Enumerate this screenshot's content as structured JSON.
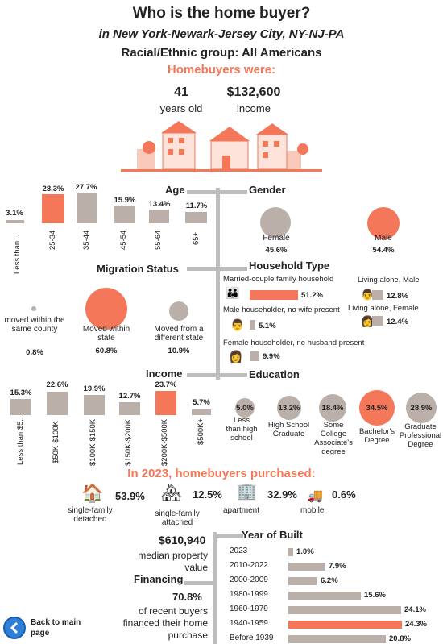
{
  "header": {
    "title": "Who is the home buyer?",
    "location": "in New York-Newark-Jersey City, NY-NJ-PA",
    "group": "Racial/Ethnic group: All Americans",
    "homebuyers_were": "Homebuyers were:"
  },
  "summary": {
    "age_value": "41",
    "age_label": "years old",
    "income_value": "$132,600",
    "income_label": "income"
  },
  "age": {
    "title": "Age",
    "categories": [
      "Less than ..",
      "25-34",
      "35-44",
      "45-54",
      "55-64",
      "65+"
    ],
    "labels": [
      "3.1%",
      "28.3%",
      "27.7%",
      "15.9%",
      "13.4%",
      "11.7%"
    ]
  },
  "gender": {
    "title": "Gender",
    "female_label": "Female",
    "female_pct": "45.6%",
    "male_label": "Male",
    "male_pct": "54.4%"
  },
  "migration": {
    "title": "Migration Status",
    "items": [
      {
        "label": "moved within the same county",
        "pct": "0.8%"
      },
      {
        "label": "Moved within state",
        "pct": "60.8%"
      },
      {
        "label": "Moved from a different state",
        "pct": "10.9%"
      }
    ]
  },
  "household": {
    "title": "Household Type",
    "married_label": "Married-couple family household",
    "married_pct": "51.2%",
    "male_no_wife_label": "Male householder, no wife present",
    "male_no_wife_pct": "5.1%",
    "female_no_husband_label": "Female householder, no husband present",
    "female_no_husband_pct": "9.9%",
    "alone_male_label": "Living alone, Male",
    "alone_male_pct": "12.8%",
    "alone_female_label": "Living alone, Female",
    "alone_female_pct": "12.4%"
  },
  "income": {
    "title": "Income",
    "categories": [
      "Less than $5..",
      "$50K-$100K",
      "$100K-$150K",
      "$150K-$200K",
      "$200K-$500K",
      "$500K+"
    ],
    "labels": [
      "15.3%",
      "22.6%",
      "19.9%",
      "12.7%",
      "23.7%",
      "5.7%"
    ]
  },
  "education": {
    "title": "Education",
    "items": [
      {
        "label": "Less than high school",
        "pct": "5.0%"
      },
      {
        "label": "High School Graduate",
        "pct": "13.2%"
      },
      {
        "label": "Some College Associate's degree",
        "pct": "18.4%"
      },
      {
        "label": "Bachelor's Degree",
        "pct": "34.5%"
      },
      {
        "label": "Graduate Professional Degree",
        "pct": "28.9%"
      }
    ]
  },
  "purchased": {
    "title": "In 2023, homebuyers purchased:",
    "detached_label": "single-family detached",
    "detached_pct": "53.9%",
    "attached_label": "single-family attached",
    "attached_pct": "12.5%",
    "apartment_label": "apartment",
    "apartment_pct": "32.9%",
    "mobile_label": "mobile",
    "mobile_pct": "0.6%"
  },
  "property": {
    "median_value": "$610,940",
    "median_label": "median property value",
    "financing_title": "Financing",
    "financing_pct": "70.8%",
    "financing_label": "of recent buyers financed their home purchase"
  },
  "year_built": {
    "title": "Year of Built",
    "categories": [
      "2023",
      "2010-2022",
      "2000-2009",
      "1980-1999",
      "1960-1979",
      "1940-1959",
      "Before 1939"
    ],
    "labels": [
      "1.0%",
      "7.9%",
      "6.2%",
      "15.6%",
      "24.1%",
      "24.3%",
      "20.8%"
    ]
  },
  "nav": {
    "back_label": "Back to main page"
  },
  "colors": {
    "accent": "#f4775a",
    "bar": "#bab0a9",
    "line": "#bdbdbd"
  },
  "chart_data": [
    {
      "type": "bar",
      "title": "Age",
      "categories": [
        "Less than ..",
        "25-34",
        "35-44",
        "45-54",
        "55-64",
        "65+"
      ],
      "values": [
        3.1,
        28.3,
        27.7,
        15.9,
        13.4,
        11.7
      ]
    },
    {
      "type": "pie",
      "title": "Gender",
      "categories": [
        "Female",
        "Male"
      ],
      "values": [
        45.6,
        54.4
      ]
    },
    {
      "type": "bar",
      "title": "Migration Status",
      "categories": [
        "moved within the same county",
        "Moved within state",
        "Moved from a different state"
      ],
      "values": [
        0.8,
        60.8,
        10.9
      ]
    },
    {
      "type": "bar",
      "title": "Household Type",
      "categories": [
        "Married-couple family household",
        "Male householder, no wife present",
        "Female householder, no husband present",
        "Living alone, Male",
        "Living alone, Female"
      ],
      "values": [
        51.2,
        5.1,
        9.9,
        12.8,
        12.4
      ]
    },
    {
      "type": "bar",
      "title": "Income",
      "categories": [
        "Less than $5..",
        "$50K-$100K",
        "$100K-$150K",
        "$150K-$200K",
        "$200K-$500K",
        "$500K+"
      ],
      "values": [
        15.3,
        22.6,
        19.9,
        12.7,
        23.7,
        5.7
      ]
    },
    {
      "type": "bar",
      "title": "Education",
      "categories": [
        "Less than high school",
        "High School Graduate",
        "Some College Associate's degree",
        "Bachelor's Degree",
        "Graduate Professional Degree"
      ],
      "values": [
        5.0,
        13.2,
        18.4,
        34.5,
        28.9
      ]
    },
    {
      "type": "bar",
      "title": "Year of Built",
      "categories": [
        "2023",
        "2010-2022",
        "2000-2009",
        "1980-1999",
        "1960-1979",
        "1940-1959",
        "Before 1939"
      ],
      "values": [
        1.0,
        7.9,
        6.2,
        15.6,
        24.1,
        24.3,
        20.8
      ]
    }
  ]
}
